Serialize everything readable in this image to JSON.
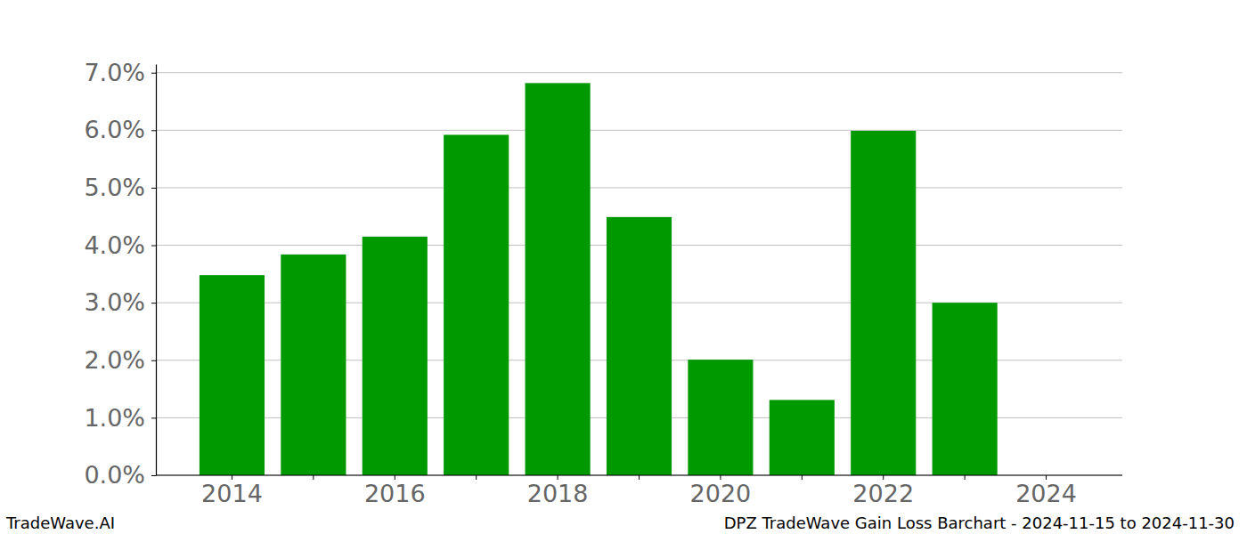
{
  "chart_data": {
    "type": "bar",
    "title": "DPZ TradeWave Gain Loss Barchart - 2024-11-15 to 2024-11-30",
    "annotations": [
      "TradeWave.AI"
    ],
    "categories": [
      "2014",
      null,
      "2016",
      null,
      "2018",
      null,
      "2020",
      null,
      "2022",
      null,
      "2024"
    ],
    "values": [
      3.48,
      3.84,
      4.15,
      5.92,
      6.82,
      4.49,
      2.01,
      1.31,
      5.99,
      3.0,
      0
    ],
    "color": "#009900",
    "ylim": [
      0,
      7.15
    ],
    "yticks": [
      {
        "value": 0,
        "label": "0.0%"
      },
      {
        "value": 1,
        "label": "1.0%"
      },
      {
        "value": 2,
        "label": "2.0%"
      },
      {
        "value": 3,
        "label": "3.0%"
      },
      {
        "value": 4,
        "label": "4.0%"
      },
      {
        "value": 5,
        "label": "5.0%"
      },
      {
        "value": 6,
        "label": "6.0%"
      },
      {
        "value": 7,
        "label": "7.0%"
      }
    ],
    "grid": true
  }
}
